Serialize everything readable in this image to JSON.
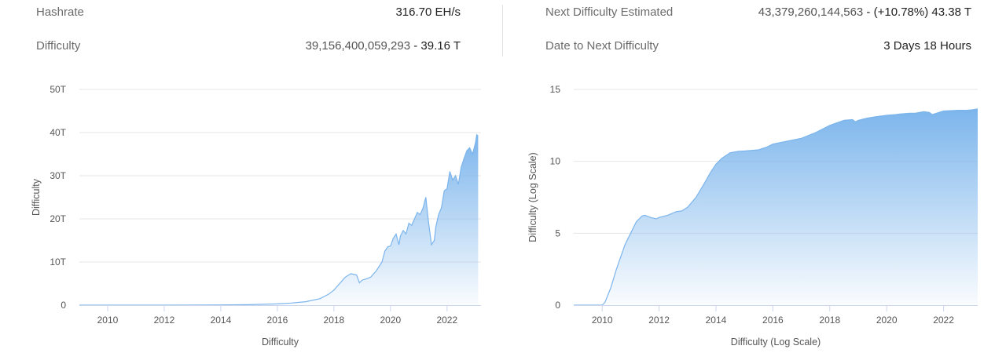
{
  "stats": {
    "hashrate_label": "Hashrate",
    "hashrate_value": "316.70 EH/s",
    "difficulty_label": "Difficulty",
    "difficulty_value": "39,156,400,059,293",
    "difficulty_sep": " - ",
    "difficulty_short": "39.16 T",
    "next_label": "Next Difficulty Estimated",
    "next_value": "43,379,260,144,563",
    "next_sep": " - ",
    "next_change": "(+10.78%) 43.38 T",
    "date_label": "Date to Next Difficulty",
    "date_value": "3 Days 18 Hours"
  },
  "colors": {
    "series": "#7cb5ec",
    "grid": "#e6e6e6",
    "axis": "#ccd6eb"
  },
  "chart_data": [
    {
      "type": "area",
      "title": "",
      "xlabel": "Difficulty",
      "ylabel": "Difficulty",
      "xlim": [
        2009.0,
        2023.2
      ],
      "ylim": [
        0,
        50
      ],
      "y_unit": "T",
      "x_ticks": [
        "2010",
        "2012",
        "2014",
        "2016",
        "2018",
        "2020",
        "2022"
      ],
      "y_ticks": [
        "0",
        "10T",
        "20T",
        "30T",
        "40T",
        "50T"
      ],
      "grid": true,
      "legend": "none",
      "series": [
        {
          "x": [
            2009.0,
            2012.0,
            2014.0,
            2015.0,
            2016.0,
            2016.5,
            2017.0,
            2017.5,
            2017.8,
            2018.0,
            2018.2,
            2018.4,
            2018.6,
            2018.8,
            2018.9,
            2019.0,
            2019.1,
            2019.3,
            2019.5,
            2019.7,
            2019.8,
            2019.9,
            2020.0,
            2020.1,
            2020.2,
            2020.3,
            2020.35,
            2020.45,
            2020.55,
            2020.65,
            2020.75,
            2020.85,
            2020.95,
            2021.05,
            2021.15,
            2021.25,
            2021.35,
            2021.45,
            2021.55,
            2021.6,
            2021.7,
            2021.8,
            2021.9,
            2022.0,
            2022.1,
            2022.2,
            2022.3,
            2022.4,
            2022.5,
            2022.6,
            2022.7,
            2022.8,
            2022.9,
            2023.0,
            2023.05,
            2023.1
          ],
          "y": [
            0,
            0,
            0.05,
            0.1,
            0.3,
            0.5,
            0.8,
            1.5,
            2.5,
            3.5,
            5.0,
            6.5,
            7.3,
            7.0,
            5.2,
            5.8,
            6.0,
            6.5,
            8.0,
            10.0,
            12.5,
            13.5,
            13.7,
            15.5,
            16.5,
            14.0,
            16.0,
            17.3,
            16.5,
            19.0,
            18.5,
            20.0,
            21.5,
            21.0,
            22.5,
            25.0,
            19.0,
            14.0,
            15.0,
            18.0,
            21.0,
            22.5,
            26.5,
            27.0,
            31.0,
            29.0,
            30.0,
            28.0,
            32.0,
            34.0,
            35.8,
            36.5,
            35.0,
            37.5,
            39.5,
            39.2
          ]
        }
      ]
    },
    {
      "type": "area",
      "title": "",
      "xlabel": "Difficulty (Log Scale)",
      "ylabel": "Difficulty (Log Scale)",
      "xlim": [
        2009.0,
        2023.2
      ],
      "ylim": [
        0,
        15
      ],
      "x_ticks": [
        "2010",
        "2012",
        "2014",
        "2016",
        "2018",
        "2020",
        "2022"
      ],
      "y_ticks": [
        "0",
        "5",
        "10",
        "15"
      ],
      "grid": true,
      "legend": "none",
      "series": [
        {
          "x": [
            2009.0,
            2010.0,
            2010.1,
            2010.3,
            2010.5,
            2010.8,
            2011.0,
            2011.2,
            2011.4,
            2011.5,
            2011.7,
            2011.9,
            2012.0,
            2012.3,
            2012.6,
            2012.8,
            2013.0,
            2013.3,
            2013.6,
            2013.8,
            2014.0,
            2014.2,
            2014.5,
            2014.8,
            2015.0,
            2015.5,
            2015.8,
            2016.0,
            2016.5,
            2017.0,
            2017.5,
            2017.8,
            2018.0,
            2018.5,
            2018.8,
            2018.9,
            2019.0,
            2019.3,
            2019.6,
            2020.0,
            2020.3,
            2020.5,
            2020.8,
            2021.0,
            2021.3,
            2021.5,
            2021.6,
            2022.0,
            2022.5,
            2022.8,
            2023.0,
            2023.2
          ],
          "y": [
            0,
            0,
            0.2,
            1.2,
            2.5,
            4.2,
            5.0,
            5.8,
            6.2,
            6.25,
            6.1,
            6.0,
            6.1,
            6.25,
            6.5,
            6.55,
            6.8,
            7.5,
            8.5,
            9.2,
            9.8,
            10.2,
            10.6,
            10.7,
            10.72,
            10.8,
            11.0,
            11.2,
            11.4,
            11.6,
            12.0,
            12.3,
            12.5,
            12.85,
            12.9,
            12.75,
            12.85,
            13.0,
            13.1,
            13.2,
            13.25,
            13.3,
            13.35,
            13.35,
            13.45,
            13.4,
            13.25,
            13.5,
            13.55,
            13.55,
            13.58,
            13.65
          ]
        }
      ]
    }
  ]
}
